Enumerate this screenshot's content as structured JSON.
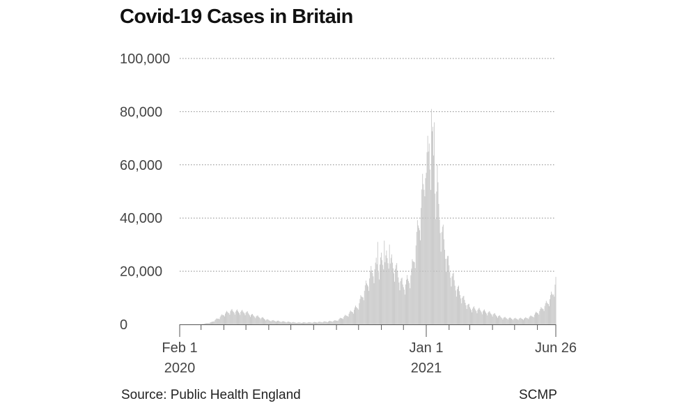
{
  "title": "Covid-19 Cases in Britain",
  "source": "Source: Public Health England",
  "credit": "SCMP",
  "colors": {
    "bars": "#c4c4c4",
    "grid": "#888888",
    "axis": "#555555",
    "text": "#444444"
  },
  "chart_data": {
    "type": "bar",
    "title": "Covid-19 Cases in Britain",
    "xlabel": "",
    "ylabel": "",
    "ylim": [
      0,
      100000
    ],
    "yticks": [
      0,
      20000,
      40000,
      60000,
      80000,
      100000
    ],
    "ytick_labels": [
      "0",
      "20,000",
      "40,000",
      "60,000",
      "80,000",
      "100,000"
    ],
    "xlim": [
      "2020-02-01",
      "2021-06-26"
    ],
    "xtick_labels": [
      {
        "date": "2020-02-01",
        "lines": [
          "Feb 1",
          "2020"
        ]
      },
      {
        "date": "2021-01-01",
        "lines": [
          "Jan 1",
          "2021"
        ]
      },
      {
        "date": "2021-06-26",
        "lines": [
          "Jun 26",
          ""
        ]
      }
    ],
    "grid": true,
    "series": [
      {
        "values_from": "2020-02-01",
        "frequency": "daily",
        "points": [
          [
            "2020-02-01",
            0
          ],
          [
            "2020-03-01",
            30
          ],
          [
            "2020-03-15",
            800
          ],
          [
            "2020-03-25",
            2500
          ],
          [
            "2020-04-01",
            4000
          ],
          [
            "2020-04-10",
            5200
          ],
          [
            "2020-04-20",
            5000
          ],
          [
            "2020-04-30",
            4800
          ],
          [
            "2020-05-10",
            3500
          ],
          [
            "2020-05-20",
            2800
          ],
          [
            "2020-06-01",
            1600
          ],
          [
            "2020-06-20",
            1100
          ],
          [
            "2020-07-10",
            700
          ],
          [
            "2020-08-01",
            800
          ],
          [
            "2020-08-20",
            1100
          ],
          [
            "2020-09-01",
            1500
          ],
          [
            "2020-09-15",
            3500
          ],
          [
            "2020-09-30",
            7000
          ],
          [
            "2020-10-10",
            14000
          ],
          [
            "2020-10-20",
            21000
          ],
          [
            "2020-10-31",
            24000
          ],
          [
            "2020-11-10",
            25000
          ],
          [
            "2020-11-20",
            22000
          ],
          [
            "2020-11-30",
            15000
          ],
          [
            "2020-12-05",
            16000
          ],
          [
            "2020-12-12",
            20000
          ],
          [
            "2020-12-20",
            35000
          ],
          [
            "2020-12-29",
            55000
          ],
          [
            "2021-01-04",
            65000
          ],
          [
            "2021-01-08",
            72000
          ],
          [
            "2021-01-14",
            55000
          ],
          [
            "2021-01-21",
            38000
          ],
          [
            "2021-01-31",
            23000
          ],
          [
            "2021-02-10",
            15000
          ],
          [
            "2021-02-20",
            10000
          ],
          [
            "2021-03-01",
            6500
          ],
          [
            "2021-03-15",
            5500
          ],
          [
            "2021-03-31",
            4200
          ],
          [
            "2021-04-15",
            2600
          ],
          [
            "2021-05-01",
            2200
          ],
          [
            "2021-05-15",
            2300
          ],
          [
            "2021-05-25",
            3200
          ],
          [
            "2021-06-05",
            5500
          ],
          [
            "2021-06-15",
            8500
          ],
          [
            "2021-06-22",
            12000
          ],
          [
            "2021-06-26",
            17000
          ]
        ],
        "peaks": [
          [
            "2020-10-27",
            31000
          ],
          [
            "2020-11-05",
            31500
          ],
          [
            "2020-11-12",
            30000
          ],
          [
            "2020-12-31",
            55000
          ],
          [
            "2021-01-05",
            68000
          ],
          [
            "2021-01-08",
            81000
          ],
          [
            "2021-01-12",
            76000
          ],
          [
            "2021-01-16",
            60000
          ]
        ]
      }
    ]
  }
}
